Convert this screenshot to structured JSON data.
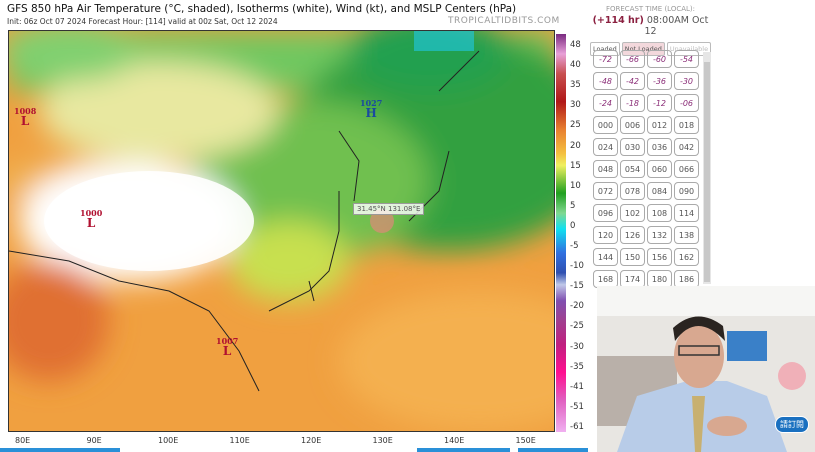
{
  "header": {
    "title": "GFS 850 hPa Air Temperature (°C, shaded), Isotherms (white), Wind (kt), and MSLP Centers (hPa)",
    "subtitle": "Init: 06z Oct 07 2024   Forecast Hour: [114]   valid at 00z Sat, Oct 12 2024",
    "brand": "TROPICALTIDBITS.COM"
  },
  "map": {
    "pressure_centers": [
      {
        "type": "L",
        "value": "1008",
        "color": "#b01030"
      },
      {
        "type": "H",
        "value": "1027",
        "color": "#1a4aa0"
      },
      {
        "type": "L",
        "value": "1000",
        "color": "#b01030"
      },
      {
        "type": "L",
        "value": "1007",
        "color": "#b01030"
      }
    ],
    "cursor_readout": "31.45°N 131.08°E",
    "x_labels": [
      "80E",
      "90E",
      "100E",
      "110E",
      "120E",
      "130E",
      "140E",
      "150E"
    ]
  },
  "colorbar": {
    "labels": [
      "48",
      "40",
      "35",
      "30",
      "25",
      "20",
      "15",
      "10",
      "5",
      "0",
      "-5",
      "-10",
      "-15",
      "-20",
      "-25",
      "-30",
      "-35",
      "-41",
      "-51",
      "-61"
    ]
  },
  "sidebar": {
    "heading": "FORECAST TIME (LOCAL):",
    "hour": "(+114 hr)",
    "time": "08:00AM Oct 12",
    "legend": {
      "loaded": "Loaded",
      "not_loaded": "Not Loaded",
      "unavailable": "Unavailable"
    },
    "hours": [
      "-72",
      "-66",
      "-60",
      "-54",
      "-48",
      "-42",
      "-36",
      "-30",
      "-24",
      "-18",
      "-12",
      "-06",
      "000",
      "006",
      "012",
      "018",
      "024",
      "030",
      "036",
      "042",
      "048",
      "054",
      "060",
      "066",
      "072",
      "078",
      "084",
      "090",
      "096",
      "102",
      "108",
      "114",
      "120",
      "126",
      "132",
      "138",
      "144",
      "150",
      "156",
      "162",
      "168",
      "174",
      "180",
      "186"
    ]
  },
  "webcam": {
    "badge": "請訂閱"
  }
}
